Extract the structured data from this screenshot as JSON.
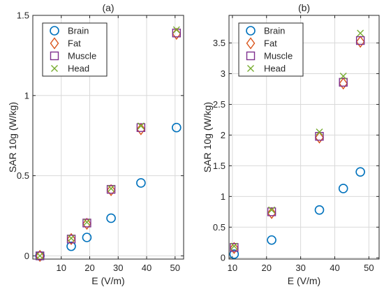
{
  "chart_data": [
    {
      "type": "scatter",
      "title": "(a)",
      "xlabel": "E (V/m)",
      "ylabel": "SAR 10g (W/kg)",
      "xlim": [
        0,
        53
      ],
      "ylim": [
        -0.02,
        1.5
      ],
      "xticks": [
        10,
        20,
        30,
        40,
        50
      ],
      "xtick_labels": [
        "10",
        "20",
        "30",
        "40",
        "50"
      ],
      "yticks": [
        0,
        0.5,
        1,
        1.5
      ],
      "ytick_labels": [
        "0",
        "0.5",
        "1",
        "1.5"
      ],
      "grid": true,
      "legend": "top-left",
      "series": [
        {
          "name": "Brain",
          "marker": "circle",
          "color": "#0072BD",
          "x": [
            2.5,
            13.5,
            19,
            27.5,
            38,
            50.5
          ],
          "y": [
            0.0,
            0.06,
            0.115,
            0.235,
            0.455,
            0.8
          ]
        },
        {
          "name": "Fat",
          "marker": "diamond",
          "color": "#D95319",
          "x": [
            2.5,
            13.5,
            19,
            27.5,
            38,
            50.5
          ],
          "y": [
            0.0,
            0.105,
            0.2,
            0.41,
            0.79,
            1.385
          ]
        },
        {
          "name": "Muscle",
          "marker": "square",
          "color": "#7E2F8E",
          "x": [
            2.5,
            13.5,
            19,
            27.5,
            38,
            50.5
          ],
          "y": [
            0.0,
            0.105,
            0.205,
            0.415,
            0.8,
            1.39
          ]
        },
        {
          "name": "Head",
          "marker": "x",
          "color": "#77AC30",
          "x": [
            2.5,
            13.5,
            19,
            27.5,
            38,
            50.5
          ],
          "y": [
            0.0,
            0.11,
            0.21,
            0.42,
            0.81,
            1.41
          ]
        }
      ]
    },
    {
      "type": "scatter",
      "title": "(b)",
      "xlabel": "E (V/m)",
      "ylabel": "SAR 10g (W/kg)",
      "xlim": [
        9,
        53
      ],
      "ylim": [
        -0.02,
        3.95
      ],
      "xticks": [
        10,
        20,
        30,
        40,
        50
      ],
      "xtick_labels": [
        "10",
        "20",
        "30",
        "40",
        "50"
      ],
      "yticks": [
        0,
        0.5,
        1,
        1.5,
        2,
        2.5,
        3,
        3.5
      ],
      "ytick_labels": [
        "0",
        "0.5",
        "1",
        "1.5",
        "2",
        "2.5",
        "3",
        "3.5"
      ],
      "grid": true,
      "legend": "top-left",
      "series": [
        {
          "name": "Brain",
          "marker": "circle",
          "color": "#0072BD",
          "x": [
            10.5,
            21.5,
            35.5,
            42.5,
            47.5
          ],
          "y": [
            0.06,
            0.29,
            0.78,
            1.13,
            1.4
          ]
        },
        {
          "name": "Fat",
          "marker": "diamond",
          "color": "#D95319",
          "x": [
            10.5,
            21.5,
            35.5,
            42.5,
            47.5
          ],
          "y": [
            0.16,
            0.73,
            1.96,
            2.84,
            3.52
          ]
        },
        {
          "name": "Muscle",
          "marker": "square",
          "color": "#7E2F8E",
          "x": [
            10.5,
            21.5,
            35.5,
            42.5,
            47.5
          ],
          "y": [
            0.17,
            0.75,
            1.98,
            2.86,
            3.54
          ]
        },
        {
          "name": "Head",
          "marker": "x",
          "color": "#77AC30",
          "x": [
            10.5,
            21.5,
            35.5,
            42.5,
            47.5
          ],
          "y": [
            0.19,
            0.78,
            2.05,
            2.96,
            3.66
          ]
        }
      ]
    }
  ]
}
